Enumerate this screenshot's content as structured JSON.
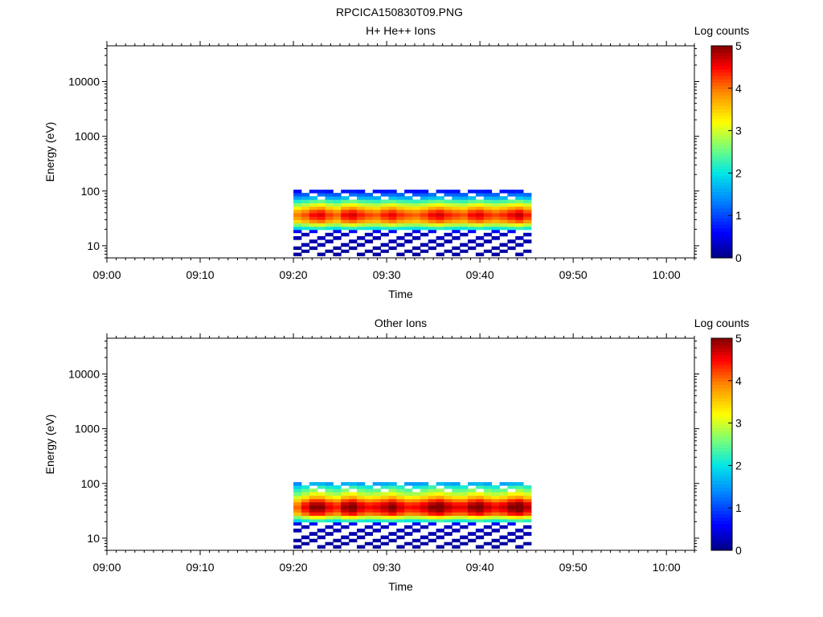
{
  "figure": {
    "title": "RPCICA150830T09.PNG"
  },
  "chart_data": [
    {
      "type": "heatmap",
      "title": "H+ He++ Ions",
      "xlabel": "Time",
      "ylabel": "Energy (eV)",
      "x_ticks": [
        "09:00",
        "09:10",
        "09:20",
        "09:30",
        "09:40",
        "09:50",
        "10:00"
      ],
      "x_range": [
        "09:00",
        "10:03"
      ],
      "y_scale": "log",
      "y_ticks": [
        "10",
        "100",
        "1000",
        "10000"
      ],
      "y_range": [
        6,
        45000
      ],
      "colorbar": {
        "label": "Log counts",
        "range": [
          0,
          5
        ],
        "ticks": [
          "0",
          "1",
          "2",
          "3",
          "4",
          "5"
        ],
        "colormap": "rainbow"
      },
      "data_time_range": [
        "09:20",
        "09:45:30"
      ],
      "energy_bins_eV": [
        7,
        8,
        9,
        10.5,
        12,
        14,
        16,
        18.5,
        21,
        24,
        28,
        32,
        37,
        43,
        49,
        56,
        65,
        75,
        86,
        99
      ],
      "profile_log_counts_by_bin": [
        0.15,
        0.15,
        0.15,
        0.2,
        0.2,
        0.25,
        0.25,
        0.6,
        2.1,
        2.9,
        3.8,
        4.2,
        4.4,
        4.1,
        3.6,
        3.0,
        2.4,
        1.7,
        1.2,
        0.7
      ],
      "column_intensity": [
        0.9,
        0.95,
        1.02,
        1.05,
        0.97,
        0.93,
        1.03,
        1.06,
        1.0,
        0.96,
        0.94,
        1.0,
        1.04,
        0.98,
        0.95,
        0.93,
        0.97,
        1.03,
        1.06,
        1.0,
        0.97,
        0.95,
        1.02,
        1.05,
        0.99,
        0.96,
        0.99,
        1.04,
        1.08,
        1.0
      ]
    },
    {
      "type": "heatmap",
      "title": "Other Ions",
      "xlabel": "Time",
      "ylabel": "Energy (eV)",
      "x_ticks": [
        "09:00",
        "09:10",
        "09:20",
        "09:30",
        "09:40",
        "09:50",
        "10:00"
      ],
      "x_range": [
        "09:00",
        "10:03"
      ],
      "y_scale": "log",
      "y_ticks": [
        "10",
        "100",
        "1000",
        "10000"
      ],
      "y_range": [
        6,
        45000
      ],
      "colorbar": {
        "label": "Log counts",
        "range": [
          0,
          5
        ],
        "ticks": [
          "0",
          "1",
          "2",
          "3",
          "4",
          "5"
        ],
        "colormap": "rainbow"
      },
      "data_time_range": [
        "09:20",
        "09:45:30"
      ],
      "energy_bins_eV": [
        7,
        8,
        9,
        10.5,
        12,
        14,
        16,
        18.5,
        21,
        24,
        28,
        32,
        37,
        43,
        49,
        56,
        65,
        75,
        86,
        99
      ],
      "profile_log_counts_by_bin": [
        0.15,
        0.15,
        0.15,
        0.2,
        0.2,
        0.25,
        0.25,
        0.6,
        2.2,
        3.1,
        4.2,
        4.6,
        4.8,
        4.6,
        4.1,
        3.5,
        3.0,
        2.6,
        2.2,
        1.6
      ],
      "column_intensity": [
        0.85,
        0.95,
        1.04,
        1.04,
        0.96,
        0.92,
        1.02,
        1.06,
        0.98,
        0.94,
        0.96,
        1.0,
        1.05,
        0.98,
        0.93,
        0.94,
        0.98,
        1.04,
        1.07,
        1.0,
        0.96,
        0.96,
        1.03,
        1.06,
        0.99,
        0.95,
        0.98,
        1.05,
        1.08,
        1.0
      ]
    }
  ]
}
